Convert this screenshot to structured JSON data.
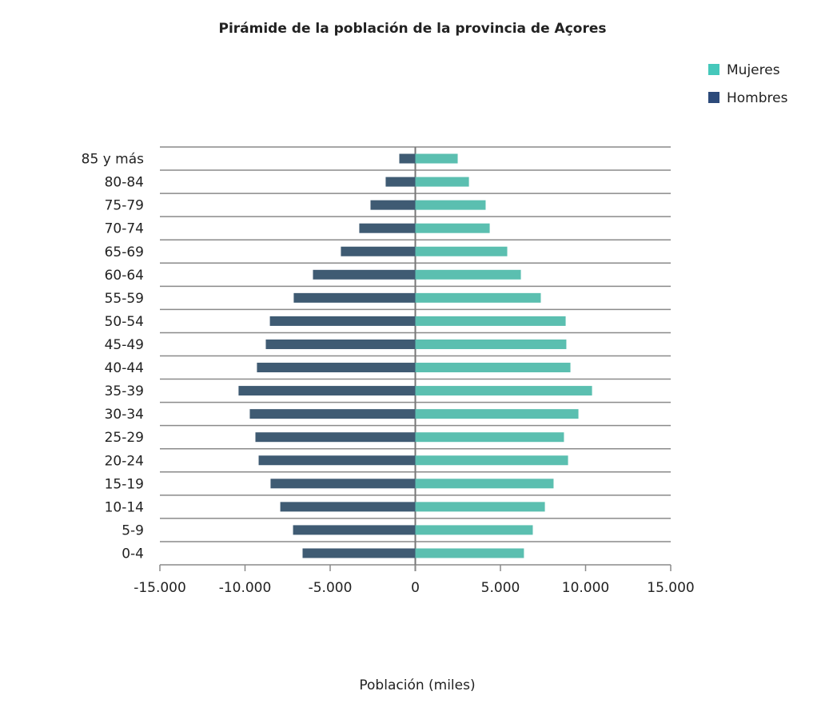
{
  "chart_data": {
    "type": "bar",
    "orientation": "horizontal-pyramid",
    "title": "Pirámide de la población de la provincia de Açores",
    "xlabel": "Población (miles)",
    "ylabel": "",
    "xlim": [
      -15000,
      15000
    ],
    "xticks": [
      -15000,
      -10000,
      -5000,
      0,
      5000,
      10000,
      15000
    ],
    "xtick_labels": [
      "-15.000",
      "-10.000",
      "-5.000",
      "0",
      "5.000",
      "10.000",
      "15.000"
    ],
    "grid": "horizontal",
    "legend_position": "top-right",
    "categories": [
      "85 y más",
      "80-84",
      "75-79",
      "70-74",
      "65-69",
      "60-64",
      "55-59",
      "50-54",
      "45-49",
      "40-44",
      "35-39",
      "30-34",
      "25-29",
      "20-24",
      "15-19",
      "10-14",
      "5-9",
      "0-4"
    ],
    "series": [
      {
        "name": "Mujeres",
        "color": "#5bbfb0",
        "legend_color": "#45c8bb",
        "values": [
          2490,
          3150,
          4130,
          4370,
          5400,
          6200,
          7370,
          8830,
          8870,
          9110,
          10380,
          9580,
          8730,
          8970,
          8120,
          7610,
          6900,
          6380
        ]
      },
      {
        "name": "Hombres",
        "color": "#3f5b73",
        "legend_color": "#2c4a7a",
        "values": [
          -940,
          -1740,
          -2630,
          -3290,
          -4370,
          -6010,
          -7140,
          -8540,
          -8780,
          -9300,
          -10380,
          -9720,
          -9390,
          -9200,
          -8500,
          -7930,
          -7180,
          -6620
        ]
      }
    ]
  }
}
